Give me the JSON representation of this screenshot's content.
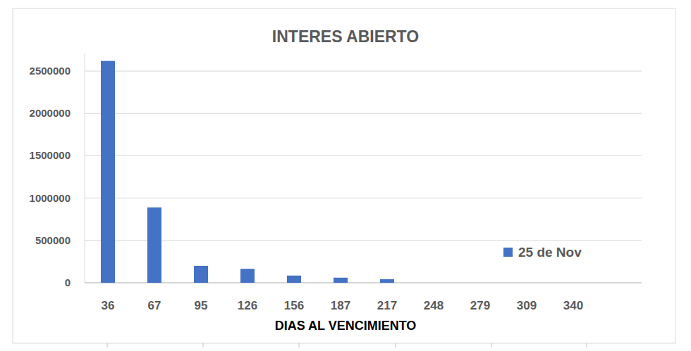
{
  "chart_data": {
    "type": "bar",
    "title": "INTERES ABIERTO",
    "x_label": "DIAS AL VENCIMIENTO",
    "categories": [
      "36",
      "67",
      "95",
      "126",
      "156",
      "187",
      "217",
      "248",
      "279",
      "309",
      "340"
    ],
    "series": [
      {
        "name": "25 de Nov",
        "color": "#4472c4",
        "values": [
          2620000,
          890000,
          200000,
          165000,
          85000,
          60000,
          42000,
          0,
          0,
          0,
          0
        ]
      }
    ],
    "ylim": [
      0,
      2700000
    ],
    "yticks": [
      0,
      500000,
      1000000,
      1500000,
      2000000,
      2500000
    ],
    "grid": true,
    "legend": "right"
  }
}
